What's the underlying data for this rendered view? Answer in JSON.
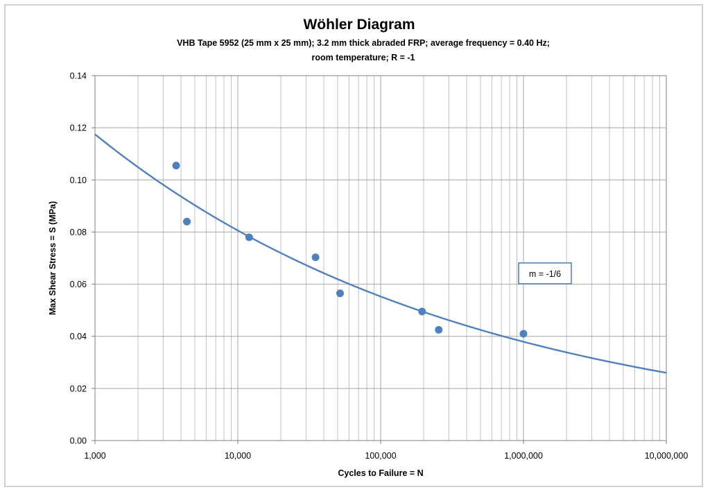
{
  "chart_data": {
    "type": "scatter",
    "title": "Wöhler Diagram",
    "subtitle_lines": [
      "VHB Tape 5952 (25 mm x 25 mm); 3.2 mm thick abraded FRP; average frequency = 0.40 Hz;",
      "room temperature; R = -1"
    ],
    "xlabel": "Cycles to Failure = N",
    "ylabel": "Max Shear Stress = S (MPa)",
    "x_scale": "log",
    "xlim": [
      1000,
      10000000
    ],
    "ylim": [
      0,
      0.14
    ],
    "x_ticks": [
      1000,
      10000,
      100000,
      1000000,
      10000000
    ],
    "x_tick_labels": [
      "1,000",
      "10,000",
      "100,000",
      "1,000,000",
      "10,000,000"
    ],
    "y_ticks": [
      0,
      0.02,
      0.04,
      0.06,
      0.08,
      0.1,
      0.12,
      0.14
    ],
    "y_tick_labels": [
      "0.00",
      "0.02",
      "0.04",
      "0.06",
      "0.08",
      "0.10",
      "0.12",
      "0.14"
    ],
    "grid": true,
    "legend": "none",
    "series": [
      {
        "marker": "circle",
        "color": "#4f81bd",
        "points": [
          {
            "x": 3700,
            "y": 0.1055
          },
          {
            "x": 4400,
            "y": 0.084
          },
          {
            "x": 12000,
            "y": 0.078
          },
          {
            "x": 35000,
            "y": 0.0703
          },
          {
            "x": 52000,
            "y": 0.0565
          },
          {
            "x": 195000,
            "y": 0.0495
          },
          {
            "x": 255000,
            "y": 0.0425
          },
          {
            "x": 1000000,
            "y": 0.041
          }
        ]
      }
    ],
    "trendline": {
      "type": "power",
      "color": "#4f81bd",
      "y_at_xmin": 0.1175,
      "y_at_xmax": 0.026,
      "x_range": [
        1000,
        10000000
      ]
    },
    "annotations": [
      {
        "text": "m = -1/6",
        "anchor_x": 1000000,
        "anchor_y": 0.0635
      }
    ],
    "colors": {
      "series": "#4f81bd",
      "grid": "#a6a6a6",
      "annotation_border": "#4f81bd"
    }
  }
}
